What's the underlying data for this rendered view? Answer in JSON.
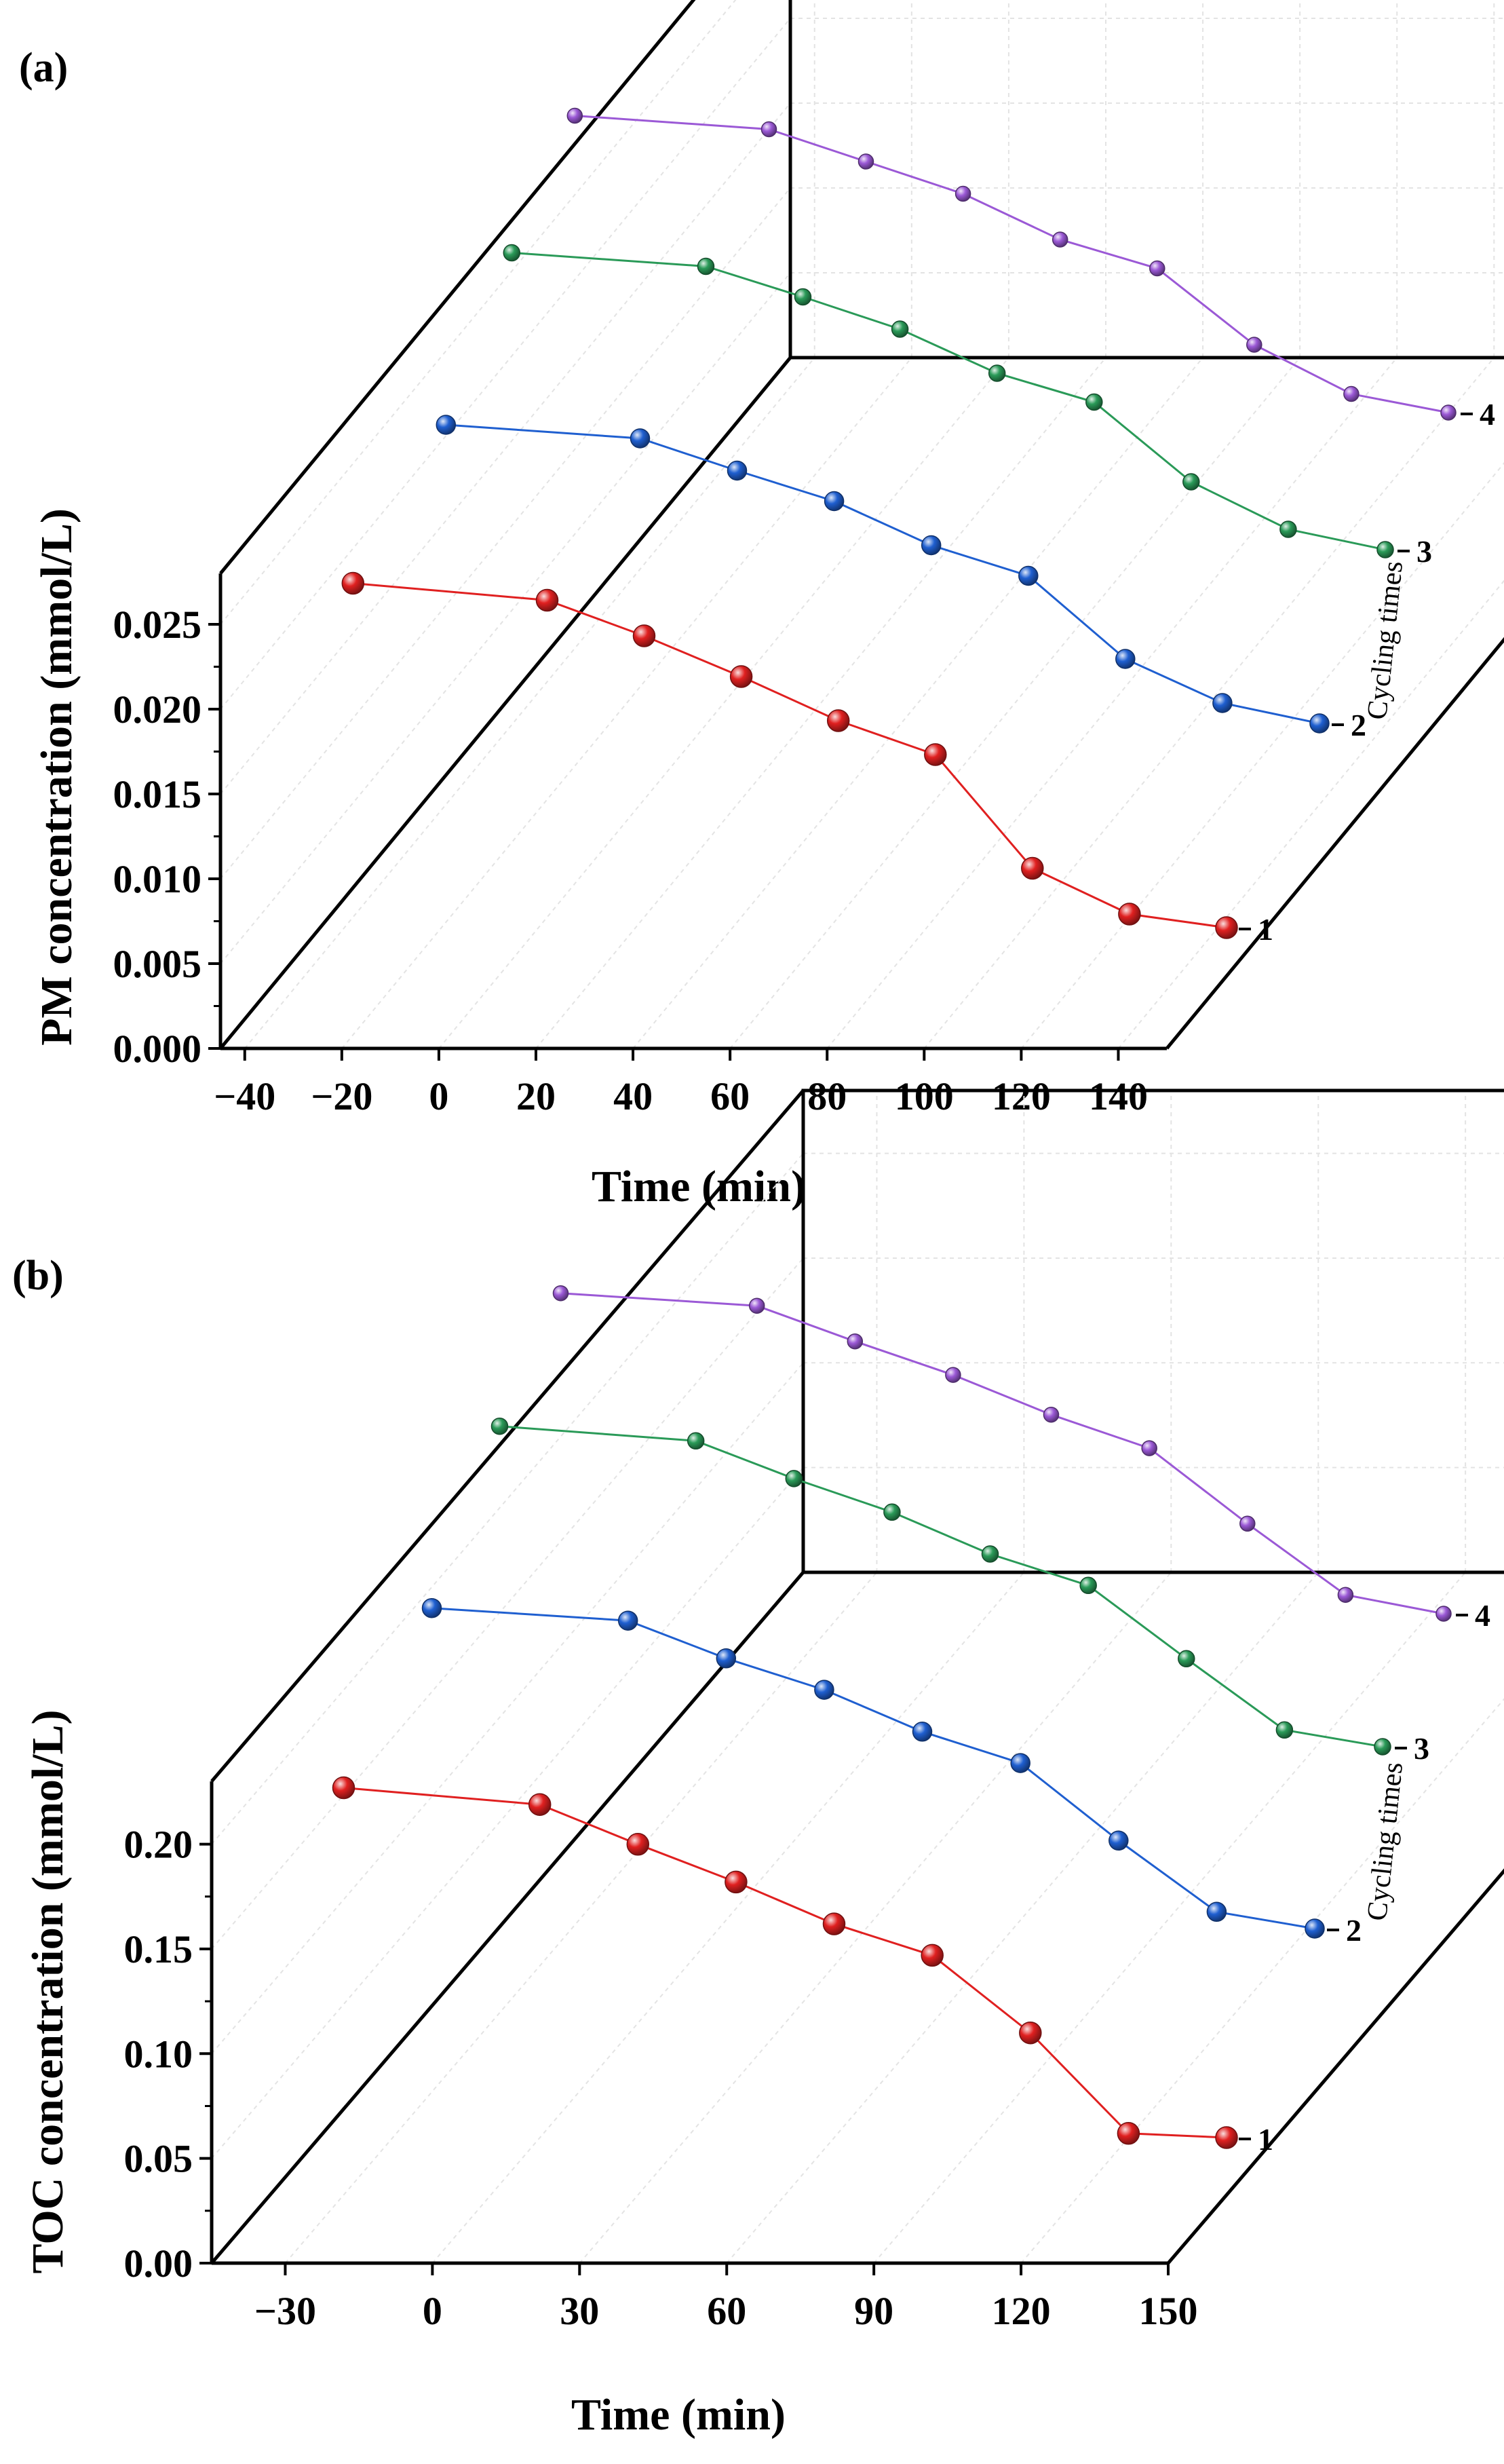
{
  "figure": {
    "panel_labels": [
      "(a)",
      "(b)"
    ]
  },
  "chart_data": [
    {
      "type": "line",
      "panel": "(a)",
      "title": "",
      "xlabel": "Time (min)",
      "ylabel": "PM concentration (mmol/L)",
      "zlabel": "Cycling times",
      "xlim": [
        -45,
        150
      ],
      "ylim": [
        0,
        0.028
      ],
      "xticks": [
        -40,
        -20,
        0,
        20,
        40,
        60,
        80,
        100,
        120,
        140
      ],
      "xtick_labels": [
        "−40",
        "−20",
        "0",
        "20",
        "40",
        "60",
        "80",
        "100",
        "120",
        "140"
      ],
      "yticks": [
        0,
        0.005,
        0.01,
        0.015,
        0.02,
        0.025
      ],
      "ytick_labels": [
        "0.000",
        "0.005",
        "0.010",
        "0.015",
        "0.020",
        "0.025"
      ],
      "zticks": [
        "1",
        "2",
        "3",
        "4"
      ],
      "grid": true,
      "x": [
        -20,
        20,
        40,
        60,
        80,
        100,
        120,
        140,
        160
      ],
      "series": [
        {
          "name": "1",
          "color": "#e02020",
          "values": [
            0.0263,
            0.0253,
            0.0232,
            0.0208,
            0.0182,
            0.0162,
            0.0095,
            0.0068,
            0.006
          ]
        },
        {
          "name": "2",
          "color": "#1f5fd0",
          "values": [
            0.0261,
            0.0253,
            0.0234,
            0.0216,
            0.019,
            0.0172,
            0.0123,
            0.0097,
            0.0085
          ]
        },
        {
          "name": "3",
          "color": "#2a9a58",
          "values": [
            0.0259,
            0.0251,
            0.0233,
            0.0214,
            0.0188,
            0.0171,
            0.0124,
            0.0096,
            0.0084
          ]
        },
        {
          "name": "4",
          "color": "#9b59d6",
          "values": [
            0.0261,
            0.0253,
            0.0234,
            0.0215,
            0.0188,
            0.0171,
            0.0126,
            0.0097,
            0.0086
          ]
        }
      ]
    },
    {
      "type": "line",
      "panel": "(b)",
      "title": "",
      "xlabel": "Time (min)",
      "ylabel": "TOC concentration (mmol/L)",
      "zlabel": "Cycling times",
      "xlim": [
        -45,
        150
      ],
      "ylim": [
        0,
        0.23
      ],
      "xticks": [
        -30,
        0,
        30,
        60,
        90,
        120,
        150
      ],
      "xtick_labels": [
        "−30",
        "0",
        "30",
        "60",
        "90",
        "120",
        "150"
      ],
      "yticks": [
        0,
        0.05,
        0.1,
        0.15,
        0.2
      ],
      "ytick_labels": [
        "0.00",
        "0.05",
        "0.10",
        "0.15",
        "0.20"
      ],
      "zticks": [
        "1",
        "2",
        "3",
        "4"
      ],
      "grid": true,
      "x": [
        -20,
        20,
        40,
        60,
        80,
        100,
        120,
        140,
        160
      ],
      "series": [
        {
          "name": "1",
          "color": "#e02020",
          "values": [
            0.215,
            0.207,
            0.188,
            0.17,
            0.15,
            0.135,
            0.098,
            0.05,
            0.048
          ]
        },
        {
          "name": "2",
          "color": "#1f5fd0",
          "values": [
            0.214,
            0.208,
            0.19,
            0.175,
            0.155,
            0.14,
            0.103,
            0.069,
            0.061
          ]
        },
        {
          "name": "3",
          "color": "#2a9a58",
          "values": [
            0.215,
            0.208,
            0.19,
            0.174,
            0.154,
            0.139,
            0.104,
            0.07,
            0.062
          ]
        },
        {
          "name": "4",
          "color": "#9b59d6",
          "values": [
            0.214,
            0.208,
            0.191,
            0.175,
            0.156,
            0.14,
            0.104,
            0.07,
            0.061
          ]
        }
      ]
    }
  ]
}
